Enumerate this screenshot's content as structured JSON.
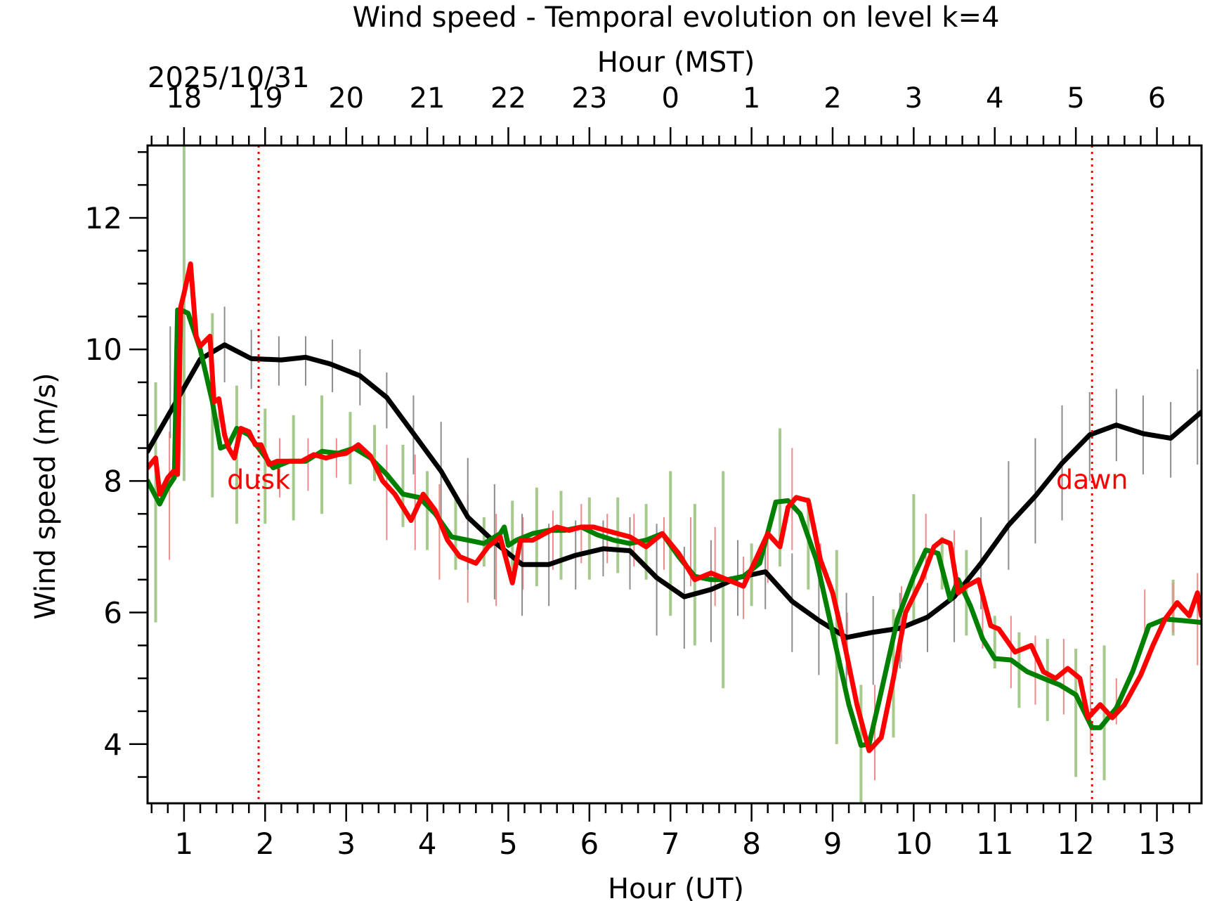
{
  "chart_data": {
    "type": "line",
    "title": "Wind speed - Temporal evolution on level k=4",
    "xlabel": "Hour (UT)",
    "ylabel": "Wind speed (m/s)",
    "top_xlabel": "Hour (MST)",
    "date_label": "2025/10/31",
    "xlim": [
      0.55,
      13.55
    ],
    "ylim": [
      3.1,
      13.1
    ],
    "x_ticks": [
      1,
      2,
      3,
      4,
      5,
      6,
      7,
      8,
      9,
      10,
      11,
      12,
      13
    ],
    "y_ticks": [
      4,
      6,
      8,
      10,
      12
    ],
    "top_ticks": [
      {
        "ut": 1,
        "label": "18"
      },
      {
        "ut": 2,
        "label": "19"
      },
      {
        "ut": 3,
        "label": "20"
      },
      {
        "ut": 4,
        "label": "21"
      },
      {
        "ut": 5,
        "label": "22"
      },
      {
        "ut": 6,
        "label": "23"
      },
      {
        "ut": 7,
        "label": "0"
      },
      {
        "ut": 8,
        "label": "1"
      },
      {
        "ut": 9,
        "label": "2"
      },
      {
        "ut": 10,
        "label": "3"
      },
      {
        "ut": 11,
        "label": "4"
      },
      {
        "ut": 12,
        "label": "5"
      },
      {
        "ut": 13,
        "label": "6"
      }
    ],
    "grid": false,
    "legend": "none",
    "colors": {
      "black": "#000000",
      "green": "#008000",
      "red": "#ff0000",
      "green_err": "#a6c98c",
      "red_err": "#f08a8a",
      "black_err": "#8c8c8c"
    },
    "annotations": [
      {
        "x": 1.92,
        "label": "dusk"
      },
      {
        "x": 12.2,
        "label": "dawn"
      }
    ],
    "series": [
      {
        "color": "black",
        "x": [
          0.55,
          0.9,
          1.2,
          1.5,
          1.83,
          2.2,
          2.5,
          2.8,
          3.17,
          3.5,
          3.83,
          4.17,
          4.5,
          4.83,
          5.17,
          5.5,
          5.83,
          6.17,
          6.5,
          6.83,
          7.17,
          7.5,
          7.83,
          8.17,
          8.5,
          8.83,
          9.17,
          9.5,
          9.83,
          10.17,
          10.5,
          10.83,
          11.17,
          11.5,
          11.83,
          12.17,
          12.5,
          12.83,
          13.17,
          13.55
        ],
        "y": [
          8.45,
          9.2,
          9.85,
          10.07,
          9.86,
          9.84,
          9.88,
          9.78,
          9.6,
          9.27,
          8.72,
          8.15,
          7.45,
          7.07,
          6.73,
          6.73,
          6.87,
          6.97,
          6.94,
          6.53,
          6.24,
          6.35,
          6.53,
          6.62,
          6.17,
          5.88,
          5.62,
          5.7,
          5.76,
          5.93,
          6.24,
          6.75,
          7.33,
          7.77,
          8.27,
          8.7,
          8.85,
          8.72,
          8.65,
          9.05
        ]
      },
      {
        "color": "green",
        "x": [
          0.55,
          0.7,
          0.8,
          0.88,
          0.92,
          0.96,
          1.05,
          1.2,
          1.35,
          1.45,
          1.55,
          1.65,
          1.8,
          1.95,
          2.1,
          2.3,
          2.5,
          2.7,
          2.9,
          3.1,
          3.3,
          3.5,
          3.7,
          3.9,
          4.1,
          4.3,
          4.5,
          4.7,
          4.9,
          4.95,
          5.0,
          5.1,
          5.3,
          5.5,
          5.7,
          5.9,
          6.1,
          6.3,
          6.5,
          6.7,
          6.9,
          7.1,
          7.3,
          7.5,
          7.7,
          7.9,
          8.1,
          8.3,
          8.45,
          8.6,
          8.8,
          9.0,
          9.2,
          9.35,
          9.45,
          9.6,
          9.8,
          10.0,
          10.15,
          10.3,
          10.45,
          10.55,
          10.7,
          10.85,
          11.0,
          11.2,
          11.4,
          11.6,
          11.8,
          12.0,
          12.2,
          12.3,
          12.5,
          12.7,
          12.9,
          13.1,
          13.3,
          13.55
        ],
        "y": [
          8.0,
          7.65,
          7.9,
          8.05,
          10.6,
          10.6,
          10.55,
          10.0,
          9.2,
          8.5,
          8.55,
          8.8,
          8.7,
          8.45,
          8.2,
          8.3,
          8.3,
          8.45,
          8.42,
          8.5,
          8.35,
          8.1,
          7.8,
          7.75,
          7.5,
          7.15,
          7.1,
          7.05,
          7.2,
          7.3,
          7.02,
          7.1,
          7.2,
          7.25,
          7.25,
          7.3,
          7.18,
          7.1,
          7.05,
          7.1,
          7.2,
          6.85,
          6.55,
          6.5,
          6.5,
          6.55,
          6.75,
          7.68,
          7.7,
          7.5,
          6.8,
          5.7,
          4.6,
          3.98,
          4.0,
          4.8,
          5.9,
          6.55,
          6.95,
          6.9,
          6.2,
          6.5,
          6.1,
          5.6,
          5.3,
          5.28,
          5.1,
          5.0,
          4.9,
          4.75,
          4.25,
          4.25,
          4.55,
          5.1,
          5.8,
          5.9,
          5.88,
          5.85
        ]
      },
      {
        "color": "red",
        "x": [
          0.55,
          0.65,
          0.7,
          0.8,
          0.87,
          0.92,
          0.96,
          1.0,
          1.08,
          1.15,
          1.2,
          1.32,
          1.37,
          1.43,
          1.5,
          1.55,
          1.62,
          1.7,
          1.8,
          1.88,
          1.95,
          2.05,
          2.15,
          2.3,
          2.45,
          2.6,
          2.75,
          2.9,
          3.0,
          3.15,
          3.3,
          3.45,
          3.6,
          3.8,
          3.95,
          4.1,
          4.25,
          4.4,
          4.6,
          4.75,
          4.9,
          5.05,
          5.15,
          5.3,
          5.45,
          5.6,
          5.75,
          5.9,
          6.05,
          6.2,
          6.35,
          6.5,
          6.7,
          6.9,
          7.1,
          7.3,
          7.5,
          7.7,
          7.9,
          8.05,
          8.2,
          8.35,
          8.45,
          8.55,
          8.7,
          8.85,
          9.0,
          9.15,
          9.3,
          9.45,
          9.6,
          9.75,
          9.9,
          10.1,
          10.25,
          10.35,
          10.45,
          10.55,
          10.65,
          10.8,
          10.95,
          11.05,
          11.25,
          11.45,
          11.6,
          11.75,
          11.9,
          12.05,
          12.15,
          12.3,
          12.45,
          12.6,
          12.8,
          12.95,
          13.1,
          13.25,
          13.4,
          13.5,
          13.55
        ],
        "y": [
          8.2,
          8.35,
          7.8,
          8.05,
          8.15,
          8.1,
          10.65,
          10.85,
          11.3,
          10.2,
          10.05,
          10.2,
          9.2,
          9.25,
          8.7,
          8.5,
          8.35,
          8.8,
          8.75,
          8.55,
          8.55,
          8.25,
          8.3,
          8.3,
          8.3,
          8.4,
          8.35,
          8.4,
          8.42,
          8.55,
          8.38,
          8.0,
          7.8,
          7.4,
          7.8,
          7.55,
          7.1,
          6.85,
          6.75,
          7.0,
          7.15,
          6.45,
          7.1,
          7.1,
          7.2,
          7.3,
          7.25,
          7.3,
          7.3,
          7.25,
          7.2,
          7.15,
          7.0,
          7.2,
          6.9,
          6.5,
          6.6,
          6.5,
          6.4,
          6.8,
          7.2,
          7.0,
          7.6,
          7.75,
          7.7,
          6.8,
          6.3,
          5.5,
          4.6,
          3.9,
          4.1,
          5.0,
          6.0,
          6.5,
          7.0,
          7.1,
          7.05,
          6.3,
          6.4,
          6.5,
          5.8,
          5.75,
          5.4,
          5.5,
          5.1,
          5.0,
          5.15,
          5.0,
          4.4,
          4.6,
          4.4,
          4.6,
          5.05,
          5.5,
          5.9,
          6.15,
          5.95,
          6.3,
          5.95
        ]
      }
    ],
    "error_bars": [
      {
        "color": "green_err",
        "width": 4,
        "x": [
          0.65,
          1.0,
          1.35,
          1.65,
          2.0,
          2.35,
          2.7,
          3.05,
          3.35,
          3.7,
          4.0,
          4.35,
          4.7,
          5.05,
          5.35,
          5.65,
          6.0,
          6.35,
          6.7,
          7.0,
          7.3,
          7.65,
          8.0,
          8.35,
          8.7,
          9.05,
          9.35,
          9.75,
          10.0,
          10.35,
          10.65,
          11.0,
          11.3,
          11.65,
          12.0,
          12.35,
          13.2
        ],
        "lo": [
          5.85,
          8.0,
          7.75,
          7.35,
          7.35,
          7.4,
          7.5,
          7.95,
          8.0,
          7.3,
          6.95,
          6.65,
          6.7,
          6.65,
          6.4,
          6.5,
          6.5,
          6.6,
          6.5,
          5.95,
          5.5,
          4.85,
          6.1,
          6.7,
          6.35,
          4.0,
          3.1,
          4.1,
          5.85,
          6.35,
          5.65,
          5.15,
          4.55,
          4.35,
          3.5,
          3.45,
          5.65
        ],
        "hi": [
          9.5,
          13.1,
          10.55,
          9.45,
          9.1,
          9.0,
          9.3,
          9.05,
          8.85,
          8.55,
          8.15,
          7.75,
          7.45,
          7.7,
          7.9,
          7.85,
          7.75,
          7.75,
          7.65,
          8.15,
          7.65,
          8.15,
          7.05,
          8.8,
          7.75,
          6.95,
          4.9,
          6.05,
          7.8,
          7.15,
          6.95,
          5.95,
          5.7,
          5.6,
          5.45,
          5.5,
          6.5
        ]
      },
      {
        "color": "red_err",
        "width": 2,
        "x": [
          0.82,
          1.43,
          2.18,
          2.53,
          2.88,
          3.5,
          3.85,
          4.15,
          4.5,
          4.85,
          5.18,
          5.55,
          5.9,
          6.22,
          6.55,
          6.92,
          7.25,
          7.55,
          7.9,
          8.2,
          8.5,
          8.85,
          9.18,
          9.52,
          9.85,
          10.15,
          10.5,
          10.85,
          11.2,
          11.5,
          11.85,
          12.18,
          12.5,
          12.85,
          13.2,
          13.5
        ],
        "lo": [
          6.8,
          8.6,
          7.75,
          7.85,
          8.05,
          7.1,
          6.95,
          6.5,
          6.15,
          6.1,
          6.35,
          6.65,
          6.75,
          6.75,
          6.7,
          6.65,
          6.4,
          6.1,
          5.9,
          6.45,
          6.95,
          6.4,
          5.05,
          3.45,
          5.25,
          6.5,
          6.15,
          5.45,
          4.85,
          4.6,
          4.45,
          3.85,
          4.3,
          5.6,
          5.7,
          5.2
        ],
        "hi": [
          8.75,
          9.1,
          8.65,
          8.65,
          8.65,
          8.55,
          8.4,
          7.95,
          7.8,
          7.5,
          7.45,
          7.55,
          7.65,
          7.5,
          7.5,
          7.45,
          7.45,
          7.3,
          6.85,
          7.1,
          8.5,
          7.05,
          6.0,
          4.9,
          6.4,
          7.5,
          7.25,
          6.35,
          5.95,
          5.65,
          5.6,
          5.2,
          5.0,
          6.35,
          6.45,
          6.6
        ]
      },
      {
        "color": "black_err",
        "width": 2,
        "x": [
          0.83,
          1.5,
          1.83,
          2.17,
          2.5,
          2.83,
          3.17,
          3.5,
          3.83,
          4.17,
          4.5,
          4.83,
          5.17,
          5.5,
          5.83,
          6.17,
          6.5,
          6.83,
          7.17,
          7.5,
          7.83,
          8.17,
          8.5,
          8.83,
          9.17,
          9.5,
          9.83,
          10.17,
          10.5,
          10.83,
          11.17,
          11.5,
          11.83,
          12.17,
          12.5,
          12.83,
          13.17,
          13.5
        ],
        "lo": [
          8.65,
          9.5,
          9.4,
          9.45,
          9.45,
          9.35,
          9.15,
          8.8,
          8.1,
          7.4,
          6.65,
          6.2,
          5.95,
          6.1,
          6.35,
          6.55,
          6.35,
          5.65,
          5.45,
          5.55,
          5.95,
          6.05,
          5.4,
          5.05,
          4.75,
          4.9,
          5.15,
          5.4,
          5.55,
          6.05,
          6.65,
          7.05,
          7.4,
          8.0,
          8.3,
          8.1,
          8.05,
          8.25
        ],
        "hi": [
          10.35,
          10.65,
          10.3,
          10.2,
          10.2,
          10.15,
          10.0,
          9.65,
          9.3,
          8.9,
          8.35,
          7.95,
          7.5,
          7.35,
          7.4,
          7.4,
          7.45,
          7.35,
          7.0,
          7.1,
          7.1,
          7.15,
          6.9,
          6.65,
          6.3,
          6.25,
          6.3,
          6.45,
          6.85,
          7.45,
          8.3,
          8.65,
          9.15,
          9.35,
          9.4,
          9.3,
          9.2,
          9.7
        ]
      }
    ]
  }
}
